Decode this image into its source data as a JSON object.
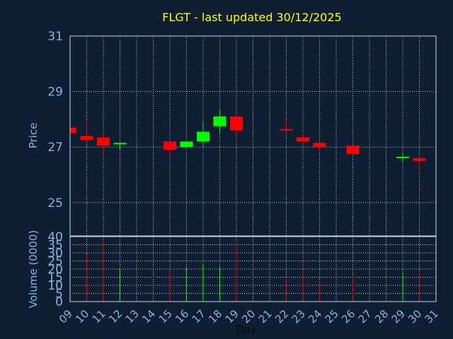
{
  "chart_data": [
    {
      "type": "candlestick",
      "title": "FLGT - last updated 30/12/2025",
      "ylabel": "Price",
      "ylim": [
        23.8,
        31
      ],
      "yticks": [
        25,
        27,
        29,
        31
      ],
      "grid": true,
      "colors": {
        "up": "#00ff00",
        "down": "#ff0000",
        "title": "#ffff00",
        "axis": "#8fb0d8",
        "grid": "#c0c0c0"
      },
      "candles": [
        {
          "day": 9,
          "open": 27.7,
          "close": 27.5,
          "high": 27.75,
          "low": 27.45
        },
        {
          "day": 10,
          "open": 27.4,
          "close": 27.25,
          "high": 28.0,
          "low": 27.2
        },
        {
          "day": 11,
          "open": 27.35,
          "close": 27.05,
          "high": 27.55,
          "low": 26.7
        },
        {
          "day": 12,
          "open": 27.1,
          "close": 27.15,
          "high": 27.15,
          "low": 26.9
        },
        {
          "day": 15,
          "open": 27.2,
          "close": 26.9,
          "high": 27.2,
          "low": 26.6
        },
        {
          "day": 16,
          "open": 27.0,
          "close": 27.2,
          "high": 27.2,
          "low": 27.0
        },
        {
          "day": 17,
          "open": 27.2,
          "close": 27.55,
          "high": 27.9,
          "low": 27.05
        },
        {
          "day": 18,
          "open": 27.75,
          "close": 28.1,
          "high": 28.35,
          "low": 27.5
        },
        {
          "day": 19,
          "open": 28.1,
          "close": 27.6,
          "high": 28.2,
          "low": 27.3
        },
        {
          "day": 22,
          "open": 27.65,
          "close": 27.6,
          "high": 28.0,
          "low": 27.55
        },
        {
          "day": 23,
          "open": 27.35,
          "close": 27.2,
          "high": 27.5,
          "low": 27.0
        },
        {
          "day": 24,
          "open": 27.15,
          "close": 27.0,
          "high": 27.15,
          "low": 26.8
        },
        {
          "day": 26,
          "open": 27.05,
          "close": 26.75,
          "high": 27.05,
          "low": 26.75
        },
        {
          "day": 29,
          "open": 26.6,
          "close": 26.65,
          "high": 26.8,
          "low": 26.45
        },
        {
          "day": 30,
          "open": 26.6,
          "close": 26.5,
          "high": 26.6,
          "low": 26.15
        }
      ]
    },
    {
      "type": "bar",
      "ylabel": "Volume (0000)",
      "xlabel": "Day",
      "ylim": [
        0,
        40
      ],
      "yticks": [
        0,
        5,
        10,
        15,
        20,
        25,
        30,
        35,
        40
      ],
      "xticks": [
        "09",
        "10",
        "11",
        "12",
        "13",
        "14",
        "15",
        "16",
        "17",
        "18",
        "19",
        "20",
        "21",
        "22",
        "23",
        "24",
        "25",
        "26",
        "27",
        "28",
        "29",
        "30",
        "31"
      ],
      "bars": [
        {
          "day": 10,
          "value": 29,
          "dir": "down"
        },
        {
          "day": 11,
          "value": 38,
          "dir": "down"
        },
        {
          "day": 12,
          "value": 20,
          "dir": "up"
        },
        {
          "day": 15,
          "value": 19,
          "dir": "down"
        },
        {
          "day": 16,
          "value": 21,
          "dir": "up"
        },
        {
          "day": 17,
          "value": 23,
          "dir": "up"
        },
        {
          "day": 18,
          "value": 21,
          "dir": "up"
        },
        {
          "day": 19,
          "value": 35,
          "dir": "down"
        },
        {
          "day": 22,
          "value": 14,
          "dir": "down"
        },
        {
          "day": 23,
          "value": 20,
          "dir": "down"
        },
        {
          "day": 24,
          "value": 12,
          "dir": "down"
        },
        {
          "day": 26,
          "value": 14,
          "dir": "down"
        },
        {
          "day": 29,
          "value": 18,
          "dir": "up"
        },
        {
          "day": 30,
          "value": 18,
          "dir": "down"
        }
      ]
    }
  ]
}
